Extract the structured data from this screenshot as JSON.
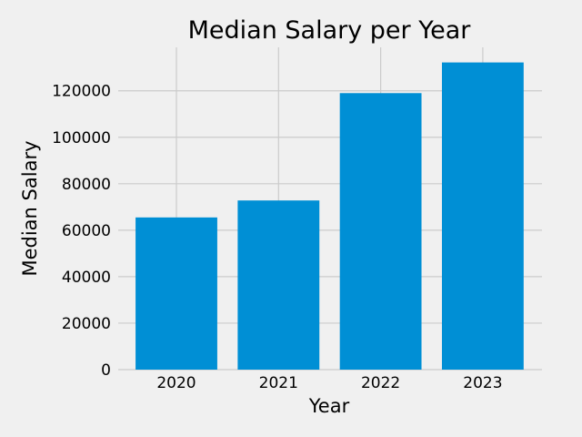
{
  "chart_data": {
    "type": "bar",
    "title": "Median Salary per Year",
    "xlabel": "Year",
    "ylabel": "Median Salary",
    "categories": [
      "2020",
      "2021",
      "2022",
      "2023"
    ],
    "values": [
      65500,
      72800,
      119000,
      132200
    ],
    "ylim": [
      0,
      138700
    ],
    "yticks": [
      0,
      20000,
      40000,
      60000,
      80000,
      100000,
      120000
    ],
    "ytick_labels": [
      "0",
      "20000",
      "40000",
      "60000",
      "80000",
      "100000",
      "120000"
    ],
    "grid": true,
    "bar_color": "#008fd5",
    "background_color": "#f0f0f0",
    "grid_color": "#cbcbcb"
  }
}
